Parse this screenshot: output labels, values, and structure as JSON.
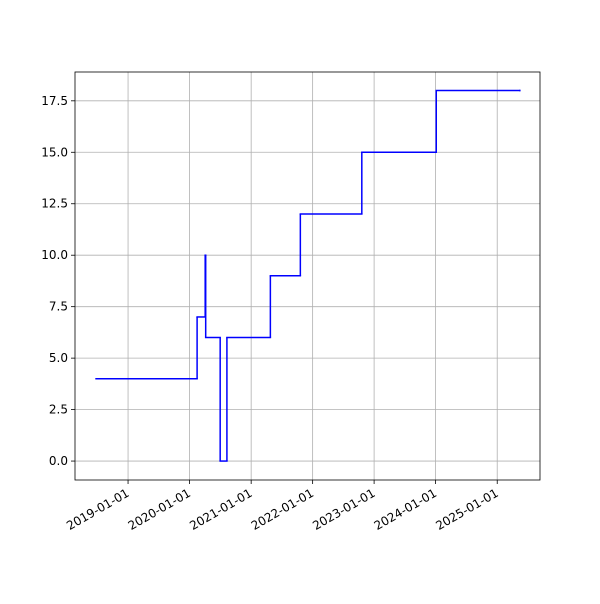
{
  "chart_data": {
    "type": "line",
    "drawstyle": "steps-post",
    "color": "#0000ff",
    "grid": true,
    "x": [
      "2018-06-25",
      "2020-02-15",
      "2020-04-03",
      "2020-04-06",
      "2020-07-01",
      "2020-08-10",
      "2021-04-25",
      "2021-10-20",
      "2022-10-20",
      "2024-01-05",
      "2025-05-15"
    ],
    "values": [
      4,
      7,
      10,
      6,
      0,
      6,
      9,
      12,
      15,
      18,
      18
    ],
    "xlim": [
      "2018-02-20",
      "2025-09-12"
    ],
    "xticks": [
      "2019-01-01",
      "2020-01-01",
      "2021-01-01",
      "2022-01-01",
      "2023-01-01",
      "2024-01-01",
      "2025-01-01"
    ],
    "ylim": [
      -0.92,
      18.9
    ],
    "yticks": [
      {
        "value": 0,
        "label": "0.0"
      },
      {
        "value": 2.5,
        "label": "2.5"
      },
      {
        "value": 5,
        "label": "5.0"
      },
      {
        "value": 7.5,
        "label": "7.5"
      },
      {
        "value": 10,
        "label": "10.0"
      },
      {
        "value": 12.5,
        "label": "12.5"
      },
      {
        "value": 15,
        "label": "15.0"
      },
      {
        "value": 17.5,
        "label": "17.5"
      }
    ]
  }
}
